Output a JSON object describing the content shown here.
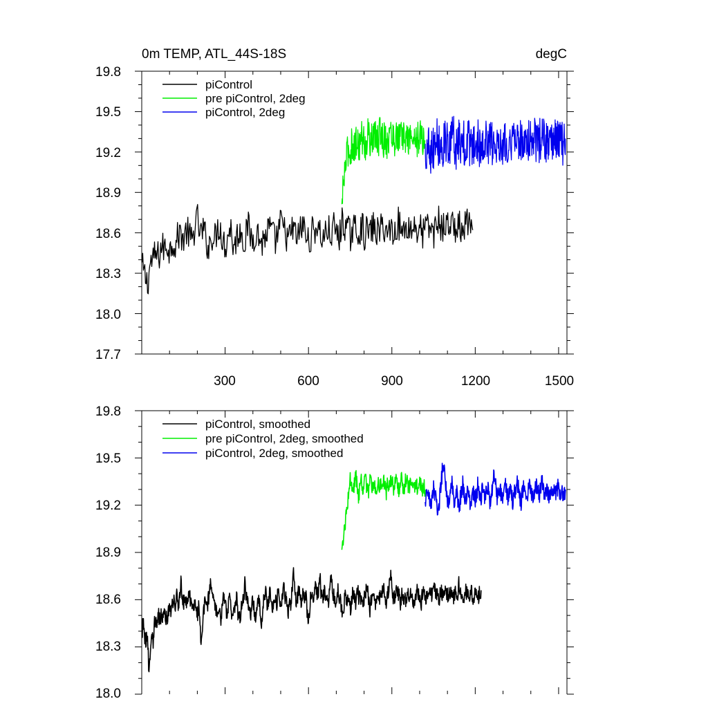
{
  "chart_data": [
    {
      "type": "line",
      "title": "0m TEMP, ATL_44S-18S",
      "units": "degC",
      "ylim": [
        17.7,
        19.8
      ],
      "xlim": [
        0,
        1530
      ],
      "yticks": [
        "19.8",
        "19.5",
        "19.2",
        "18.9",
        "18.6",
        "18.3",
        "18.0",
        "17.7"
      ],
      "xticks": [
        "300",
        "600",
        "900",
        "1200",
        "1500"
      ],
      "grid": false,
      "legend_position": "top-left",
      "series": [
        {
          "name": "piControl",
          "color": "#000000",
          "x_start": 1,
          "x_step": 10,
          "values": [
            18.35,
            18.28,
            18.22,
            18.38,
            18.4,
            18.44,
            18.42,
            18.5,
            18.48,
            18.52,
            18.46,
            18.55,
            18.5,
            18.58,
            18.6,
            18.55,
            18.62,
            18.58,
            18.52,
            18.66,
            18.7,
            18.58,
            18.62,
            18.56,
            18.48,
            18.6,
            18.54,
            18.62,
            18.66,
            18.55,
            18.5,
            18.6,
            18.64,
            18.48,
            18.56,
            18.62,
            18.6,
            18.52,
            18.66,
            18.58,
            18.55,
            18.62,
            18.58,
            18.52,
            18.56,
            18.6,
            18.64,
            18.58,
            18.54,
            18.6,
            18.68,
            18.62,
            18.58,
            18.55,
            18.63,
            18.6,
            18.56,
            18.62,
            18.66,
            18.58,
            18.52,
            18.6,
            18.62,
            18.66,
            18.6,
            18.55,
            18.6,
            18.62,
            18.58,
            18.64,
            18.6,
            18.56,
            18.68,
            18.66,
            18.62,
            18.58,
            18.64,
            18.62,
            18.6,
            18.66,
            18.58,
            18.62,
            18.6,
            18.64,
            18.62,
            18.6,
            18.63,
            18.66,
            18.6,
            18.62,
            18.64,
            18.58,
            18.7,
            18.62,
            18.6,
            18.66,
            18.64,
            18.62,
            18.66,
            18.62,
            18.64,
            18.58,
            18.66,
            18.62,
            18.64,
            18.6,
            18.66,
            18.7,
            18.62,
            18.64,
            18.66,
            18.68,
            18.64,
            18.62,
            18.66,
            18.6,
            18.62,
            18.7,
            18.64,
            18.62
          ],
          "volatility": 0.12
        },
        {
          "name": "pre piControl, 2deg",
          "color": "#00ee00",
          "x_start": 720,
          "x_step": 5,
          "values": [
            18.78,
            18.95,
            19.05,
            19.12,
            19.2,
            19.22,
            19.18,
            19.25,
            19.28,
            19.22,
            19.26,
            19.3,
            19.24,
            19.28,
            19.32,
            19.26,
            19.3,
            19.24,
            19.28,
            19.34,
            19.3,
            19.26,
            19.3,
            19.28,
            19.34,
            19.3,
            19.26,
            19.32,
            19.38,
            19.3,
            19.28,
            19.34,
            19.3,
            19.26,
            19.3,
            19.36,
            19.3,
            19.32,
            19.28,
            19.34,
            19.3,
            19.32,
            19.28,
            19.34,
            19.3,
            19.32,
            19.3,
            19.28,
            19.3,
            19.32,
            19.3,
            19.28,
            19.32,
            19.3,
            19.28,
            19.3,
            19.32,
            19.3,
            19.28,
            19.3,
            19.28
          ],
          "volatility": 0.13
        },
        {
          "name": "piControl, 2deg",
          "color": "#0000ee",
          "x_start": 1020,
          "x_step": 5,
          "values": [
            19.22,
            19.18,
            19.24,
            19.28,
            19.2,
            19.26,
            19.22,
            19.3,
            19.34,
            19.28,
            19.24,
            19.3,
            19.2,
            19.26,
            19.32,
            19.22,
            19.28,
            19.18,
            19.24,
            19.3,
            19.34,
            19.28,
            19.22,
            19.26,
            19.3,
            19.24,
            19.28,
            19.32,
            19.26,
            19.22,
            19.28,
            19.3,
            19.24,
            19.28,
            19.2,
            19.26,
            19.3,
            19.24,
            19.28,
            19.22,
            19.26,
            19.3,
            19.28,
            19.24,
            19.3,
            19.26,
            19.28,
            19.32,
            19.26,
            19.24,
            19.3,
            19.26,
            19.28,
            19.3,
            19.24,
            19.28,
            19.26,
            19.3,
            19.28,
            19.26,
            19.3,
            19.24,
            19.28,
            19.3,
            19.26,
            19.28,
            19.32,
            19.28,
            19.26,
            19.3,
            19.28,
            19.26,
            19.3,
            19.28,
            19.3,
            19.26,
            19.28,
            19.3,
            19.28,
            19.3,
            19.28,
            19.26,
            19.28,
            19.3,
            19.28,
            19.3,
            19.28,
            19.26,
            19.3,
            19.28,
            19.3,
            19.28,
            19.26,
            19.3,
            19.28,
            19.3,
            19.28,
            19.3,
            19.28,
            19.26,
            19.28,
            19.3
          ],
          "volatility": 0.16
        }
      ]
    },
    {
      "type": "line",
      "ylim": [
        18.0,
        19.8
      ],
      "xlim": [
        0,
        1530
      ],
      "yticks": [
        "19.8",
        "19.5",
        "19.2",
        "18.9",
        "18.6",
        "18.3",
        "18.0"
      ],
      "grid": false,
      "legend_position": "top-left",
      "series": [
        {
          "name": "piControl, smoothed",
          "color": "#000000",
          "x_start": 1,
          "x_step": 5,
          "values": [
            18.38,
            18.48,
            18.36,
            18.34,
            18.4,
            18.12,
            18.3,
            18.4,
            18.34,
            18.46,
            18.44,
            18.48,
            18.5,
            18.46,
            18.52,
            18.48,
            18.54,
            18.5,
            18.46,
            18.54,
            18.56,
            18.5,
            18.58,
            18.6,
            18.56,
            18.64,
            18.56,
            18.62,
            18.72,
            18.6,
            18.58,
            18.62,
            18.56,
            18.6,
            18.66,
            18.58,
            18.56,
            18.52,
            18.6,
            18.56,
            18.5,
            18.58,
            18.4,
            18.32,
            18.48,
            18.56,
            18.6,
            18.56,
            18.62,
            18.7,
            18.64,
            18.58,
            18.6,
            18.54,
            18.52,
            18.56,
            18.5,
            18.46,
            18.6,
            18.62,
            18.58,
            18.5,
            18.56,
            18.62,
            18.54,
            18.48,
            18.5,
            18.58,
            18.62,
            18.52,
            18.48,
            18.52,
            18.56,
            18.6,
            18.7,
            18.62,
            18.58,
            18.54,
            18.5,
            18.56,
            18.6,
            18.52,
            18.48,
            18.56,
            18.62,
            18.52,
            18.44,
            18.58,
            18.6,
            18.66,
            18.56,
            18.6,
            18.64,
            18.58,
            18.56,
            18.62,
            18.6,
            18.58,
            18.66,
            18.62,
            18.56,
            18.6,
            18.7,
            18.62,
            18.58,
            18.5,
            18.62,
            18.56,
            18.66,
            18.78,
            18.64,
            18.58,
            18.62,
            18.66,
            18.6,
            18.58,
            18.66,
            18.6,
            18.62,
            18.5,
            18.46,
            18.6,
            18.66,
            18.58,
            18.64,
            18.7,
            18.62,
            18.66,
            18.76,
            18.62,
            18.6,
            18.66,
            18.62,
            18.64,
            18.58,
            18.66,
            18.74,
            18.66,
            18.62,
            18.58,
            18.62,
            18.66,
            18.62,
            18.58,
            18.5,
            18.54,
            18.64,
            18.6,
            18.62,
            18.58,
            18.54,
            18.62,
            18.66,
            18.6,
            18.58,
            18.66,
            18.62,
            18.6,
            18.58,
            18.56,
            18.62,
            18.64,
            18.68,
            18.6,
            18.54,
            18.6,
            18.66,
            18.62,
            18.58,
            18.64,
            18.66,
            18.62,
            18.58,
            18.64,
            18.66,
            18.62,
            18.58,
            18.64,
            18.7,
            18.78,
            18.68,
            18.6,
            18.62,
            18.64,
            18.66,
            18.62,
            18.58,
            18.64,
            18.62,
            18.6,
            18.58,
            18.64,
            18.62,
            18.66,
            18.62,
            18.6,
            18.56,
            18.62,
            18.66,
            18.64,
            18.6,
            18.58,
            18.66,
            18.64,
            18.62,
            18.6,
            18.64,
            18.66,
            18.62,
            18.64,
            18.7,
            18.66,
            18.62,
            18.64,
            18.6,
            18.66,
            18.64,
            18.62,
            18.66,
            18.64,
            18.62,
            18.64,
            18.66,
            18.64,
            18.6,
            18.64,
            18.66,
            18.62,
            18.7,
            18.64,
            18.66,
            18.62,
            18.6,
            18.66,
            18.64,
            18.62,
            18.64,
            18.66,
            18.62,
            18.6,
            18.66,
            18.64,
            18.62,
            18.64,
            18.66
          ],
          "volatility": 0.05
        },
        {
          "name": "pre piControl, 2deg, smoothed",
          "color": "#00ee00",
          "x_start": 720,
          "x_step": 5,
          "values": [
            18.9,
            18.98,
            19.06,
            19.12,
            19.2,
            19.28,
            19.36,
            19.3,
            19.26,
            19.34,
            19.4,
            19.32,
            19.26,
            19.3,
            19.36,
            19.28,
            19.32,
            19.4,
            19.3,
            19.28,
            19.34,
            19.38,
            19.3,
            19.34,
            19.32,
            19.28,
            19.36,
            19.3,
            19.34,
            19.3,
            19.36,
            19.32,
            19.28,
            19.34,
            19.3,
            19.34,
            19.36,
            19.3,
            19.32,
            19.38,
            19.32,
            19.3,
            19.34,
            19.36,
            19.3,
            19.32,
            19.36,
            19.34,
            19.3,
            19.32,
            19.34,
            19.3,
            19.32,
            19.34,
            19.32,
            19.3,
            19.34,
            19.32,
            19.3,
            19.32,
            19.3
          ],
          "volatility": 0.05
        },
        {
          "name": "piControl, 2deg, smoothed",
          "color": "#0000ee",
          "x_start": 1020,
          "x_step": 5,
          "values": [
            19.2,
            19.26,
            19.3,
            19.24,
            19.2,
            19.28,
            19.32,
            19.26,
            19.22,
            19.1,
            19.2,
            19.3,
            19.38,
            19.5,
            19.42,
            19.3,
            19.24,
            19.2,
            19.26,
            19.34,
            19.28,
            19.22,
            19.3,
            19.26,
            19.18,
            19.22,
            19.28,
            19.34,
            19.28,
            19.22,
            19.26,
            19.3,
            19.24,
            19.2,
            19.28,
            19.3,
            19.24,
            19.26,
            19.34,
            19.28,
            19.22,
            19.3,
            19.26,
            19.22,
            19.28,
            19.32,
            19.24,
            19.2,
            19.28,
            19.36,
            19.4,
            19.32,
            19.24,
            19.28,
            19.3,
            19.26,
            19.22,
            19.3,
            19.34,
            19.28,
            19.24,
            19.3,
            19.26,
            19.22,
            19.3,
            19.28,
            19.34,
            19.3,
            19.26,
            19.22,
            19.28,
            19.32,
            19.3,
            19.26,
            19.28,
            19.32,
            19.3,
            19.26,
            19.28,
            19.3,
            19.32,
            19.28,
            19.26,
            19.3,
            19.34,
            19.3,
            19.28,
            19.32,
            19.3,
            19.26,
            19.28,
            19.32,
            19.3,
            19.28,
            19.26,
            19.3,
            19.32,
            19.28,
            19.3,
            19.28,
            19.26,
            19.3
          ],
          "volatility": 0.06
        }
      ]
    }
  ]
}
